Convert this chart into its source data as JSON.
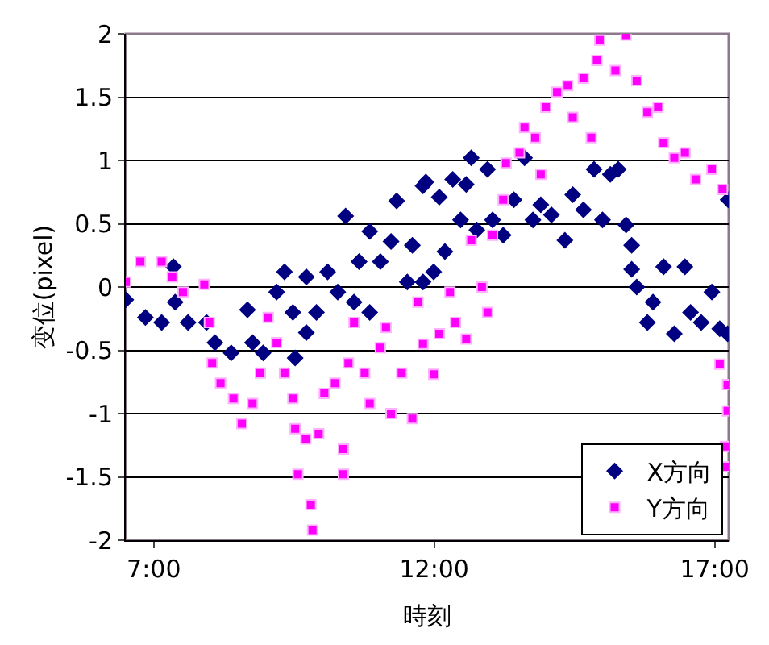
{
  "chart_data": {
    "type": "scatter",
    "xlabel": "時刻",
    "ylabel": "变位(pixel)",
    "xlim": [
      6.5,
      17.25
    ],
    "xticks": [
      {
        "value": 7,
        "label": "7:00"
      },
      {
        "value": 12,
        "label": "12:00"
      },
      {
        "value": 17,
        "label": "17:00"
      }
    ],
    "ylim": [
      -2,
      2
    ],
    "yticks": [
      -2,
      -1.5,
      -1,
      -0.5,
      0,
      0.5,
      1,
      1.5,
      2
    ],
    "grid": "y",
    "legend": "bottom right",
    "series": [
      {
        "name": "X方向",
        "color": "#000080",
        "marker": "diamond",
        "x": [
          6.5,
          6.85,
          7.14,
          7.35,
          7.38,
          7.61,
          7.94,
          8.09,
          8.38,
          8.67,
          8.76,
          8.95,
          9.19,
          9.33,
          9.52,
          9.48,
          9.72,
          9.72,
          9.9,
          10.1,
          10.28,
          10.42,
          10.57,
          10.66,
          10.85,
          10.85,
          11.04,
          11.23,
          11.33,
          11.52,
          11.61,
          11.8,
          11.8,
          11.85,
          11.99,
          12.09,
          12.19,
          12.33,
          12.47,
          12.57,
          12.66,
          12.76,
          12.95,
          13.04,
          13.23,
          13.42,
          13.61,
          13.76,
          13.9,
          14.09,
          14.33,
          14.47,
          14.66,
          14.85,
          15.0,
          15.14,
          15.28,
          15.42,
          15.52,
          15.52,
          15.61,
          15.8,
          15.9,
          16.09,
          16.28,
          16.47,
          16.57,
          16.76,
          16.95,
          17.09,
          17.23,
          17.24
        ],
        "values": [
          -0.1,
          -0.24,
          -0.28,
          0.16,
          -0.12,
          -0.28,
          -0.28,
          -0.44,
          -0.52,
          -0.18,
          -0.44,
          -0.52,
          -0.04,
          0.12,
          -0.56,
          -0.2,
          -0.36,
          0.08,
          -0.2,
          0.12,
          -0.04,
          0.56,
          -0.12,
          0.2,
          0.44,
          -0.2,
          0.2,
          0.36,
          0.68,
          0.04,
          0.33,
          0.8,
          0.04,
          0.83,
          0.12,
          0.71,
          0.28,
          0.85,
          0.53,
          0.81,
          1.02,
          0.45,
          0.93,
          0.53,
          0.41,
          0.69,
          1.02,
          0.53,
          0.65,
          0.57,
          0.37,
          0.73,
          0.61,
          0.93,
          0.53,
          0.89,
          0.93,
          0.49,
          0.33,
          0.14,
          0,
          -0.28,
          -0.12,
          0.16,
          -0.37,
          0.16,
          -0.2,
          -0.28,
          -0.04,
          -0.33,
          -0.37,
          0.69
        ]
      },
      {
        "name": "Y方向",
        "color": "#ff00ff",
        "marker": "square",
        "x": [
          6.5,
          6.76,
          7.14,
          7.33,
          7.52,
          7.9,
          7.99,
          8.04,
          8.19,
          8.42,
          8.57,
          8.76,
          8.9,
          9.04,
          9.19,
          9.33,
          9.48,
          9.52,
          9.57,
          9.71,
          9.8,
          9.83,
          9.94,
          10.04,
          10.23,
          10.38,
          10.38,
          10.47,
          10.57,
          10.76,
          10.85,
          11.04,
          11.14,
          11.23,
          11.42,
          11.61,
          11.71,
          11.8,
          11.99,
          12.09,
          12.28,
          12.38,
          12.57,
          12.66,
          12.85,
          12.95,
          13.04,
          13.23,
          13.28,
          13.52,
          13.61,
          13.8,
          13.9,
          13.99,
          14.19,
          14.38,
          14.47,
          14.66,
          14.8,
          14.9,
          14.95,
          15.23,
          15.42,
          15.61,
          15.8,
          15.99,
          16.09,
          16.28,
          16.47,
          16.66,
          16.95,
          17.14,
          17.09,
          17.23,
          17.23,
          17.19,
          17.19
        ],
        "values": [
          0.04,
          0.2,
          0.2,
          0.08,
          -0.04,
          0.02,
          -0.28,
          -0.6,
          -0.76,
          -0.88,
          -1.08,
          -0.92,
          -0.68,
          -0.24,
          -0.44,
          -0.68,
          -0.88,
          -1.12,
          -1.48,
          -1.2,
          -1.72,
          -1.92,
          -1.16,
          -0.84,
          -0.76,
          -1.28,
          -1.48,
          -0.6,
          -0.28,
          -0.68,
          -0.92,
          -0.48,
          -0.32,
          -1.0,
          -0.68,
          -1.04,
          -0.12,
          -0.45,
          -0.69,
          -0.37,
          -0.04,
          -0.28,
          -0.41,
          0.37,
          0,
          -0.2,
          0.41,
          0.69,
          0.98,
          1.06,
          1.26,
          1.18,
          0.89,
          1.42,
          1.54,
          1.59,
          1.34,
          1.65,
          1.18,
          1.79,
          1.95,
          1.71,
          1.99,
          1.63,
          1.38,
          1.42,
          1.14,
          1.02,
          1.06,
          0.85,
          0.93,
          0.77,
          -0.61,
          -0.77,
          -0.98,
          -1.26,
          -1.42
        ]
      }
    ]
  }
}
